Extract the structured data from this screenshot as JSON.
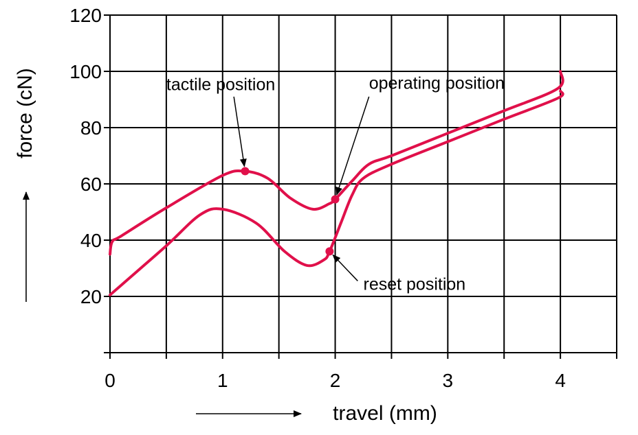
{
  "chart_data": {
    "type": "line",
    "xlabel": "travel (mm)",
    "ylabel": "force (cN)",
    "xlim": [
      0,
      4.5
    ],
    "ylim": [
      0,
      120
    ],
    "x_ticks": [
      "0",
      "1",
      "2",
      "3",
      "4"
    ],
    "y_ticks": [
      "20",
      "40",
      "60",
      "80",
      "100",
      "120"
    ],
    "grid": true,
    "line_color": "#e0104a",
    "series": [
      {
        "points": [
          [
            0,
            35
          ],
          [
            0.02,
            39.5
          ],
          [
            0.1,
            41.5
          ],
          [
            0.5,
            51.5
          ],
          [
            1.0,
            63
          ],
          [
            1.2,
            64.5
          ],
          [
            1.4,
            62
          ],
          [
            1.6,
            55
          ],
          [
            1.8,
            51
          ],
          [
            1.95,
            53
          ],
          [
            2.0,
            54.5
          ],
          [
            2.15,
            61
          ],
          [
            2.3,
            67
          ],
          [
            2.5,
            70
          ],
          [
            3.0,
            78
          ],
          [
            3.5,
            86
          ],
          [
            3.98,
            94
          ],
          [
            4.0,
            100
          ]
        ]
      },
      {
        "points": [
          [
            0,
            20.5
          ],
          [
            0.1,
            24
          ],
          [
            0.5,
            38
          ],
          [
            0.8,
            49
          ],
          [
            1.0,
            51
          ],
          [
            1.3,
            46
          ],
          [
            1.55,
            36
          ],
          [
            1.75,
            31
          ],
          [
            1.9,
            33
          ],
          [
            1.95,
            36
          ],
          [
            2.05,
            46
          ],
          [
            2.15,
            56
          ],
          [
            2.25,
            62
          ],
          [
            2.5,
            67
          ],
          [
            3.0,
            75
          ],
          [
            3.5,
            83
          ],
          [
            3.98,
            90.5
          ],
          [
            4.0,
            93
          ]
        ]
      }
    ],
    "annotations": [
      {
        "text": "tactile position",
        "x": 1.2,
        "y": 64.5,
        "label_x": 0.5,
        "label_y": 95.5,
        "arrow_from": [
          1.1,
          91
        ]
      },
      {
        "text": "operating position",
        "x": 2.0,
        "y": 54.5,
        "label_x": 2.3,
        "label_y": 96,
        "arrow_from": [
          2.3,
          91
        ]
      },
      {
        "text": "reset position",
        "x": 1.95,
        "y": 36,
        "label_x": 2.25,
        "label_y": 24.5,
        "arrow_from": [
          2.2,
          25.5
        ]
      }
    ]
  }
}
